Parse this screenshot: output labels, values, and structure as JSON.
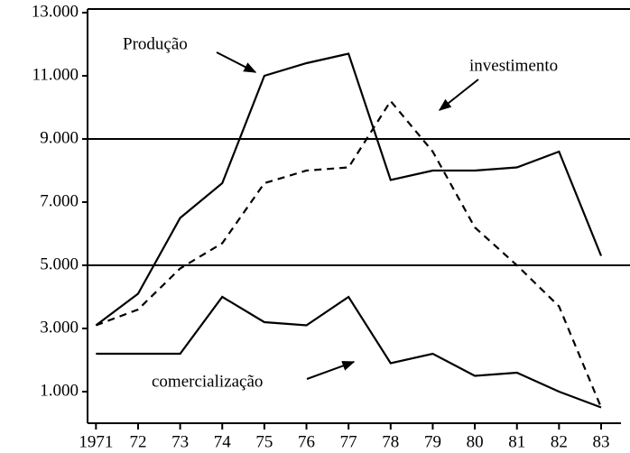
{
  "chart_data": {
    "type": "line",
    "x": [
      1971,
      1972,
      1973,
      1974,
      1975,
      1976,
      1977,
      1978,
      1979,
      1980,
      1981,
      1982,
      1983
    ],
    "series": [
      {
        "name": "Produção",
        "color": "#000000",
        "dash": false,
        "values": [
          3100,
          4100,
          6500,
          7600,
          11000,
          11400,
          11700,
          7700,
          8000,
          8000,
          8100,
          8600,
          5300
        ]
      },
      {
        "name": "investimento",
        "color": "#000000",
        "dash": true,
        "values": [
          3100,
          3600,
          4900,
          5700,
          7600,
          8000,
          8100,
          10200,
          8600,
          6200,
          5000,
          3700,
          500
        ]
      },
      {
        "name": "comercialização",
        "color": "#000000",
        "dash": false,
        "values": [
          2200,
          2200,
          2200,
          4000,
          3200,
          3100,
          4000,
          1900,
          2200,
          1500,
          1600,
          1000,
          500
        ]
      }
    ],
    "xlim": [
      1970.8,
      1983.3
    ],
    "xticks": [
      {
        "value": 1971,
        "label": "1971"
      },
      {
        "value": 1972,
        "label": "72"
      },
      {
        "value": 1973,
        "label": "73"
      },
      {
        "value": 1974,
        "label": "74"
      },
      {
        "value": 1975,
        "label": "75"
      },
      {
        "value": 1976,
        "label": "76"
      },
      {
        "value": 1977,
        "label": "77"
      },
      {
        "value": 1978,
        "label": "78"
      },
      {
        "value": 1979,
        "label": "79"
      },
      {
        "value": 1980,
        "label": "80"
      },
      {
        "value": 1981,
        "label": "81"
      },
      {
        "value": 1982,
        "label": "82"
      },
      {
        "value": 1983,
        "label": "83"
      }
    ],
    "ylim": [
      0,
      13000
    ],
    "yticks": [
      {
        "value": 1000,
        "label": "1.000"
      },
      {
        "value": 3000,
        "label": "3.000"
      },
      {
        "value": 5000,
        "label": "5.000"
      },
      {
        "value": 7000,
        "label": "7.000"
      },
      {
        "value": 9000,
        "label": "9.000"
      },
      {
        "value": 11000,
        "label": "11.000"
      },
      {
        "value": 13000,
        "label": "13.000"
      }
    ],
    "hlines": [
      5000,
      9000
    ],
    "grid": false
  }
}
